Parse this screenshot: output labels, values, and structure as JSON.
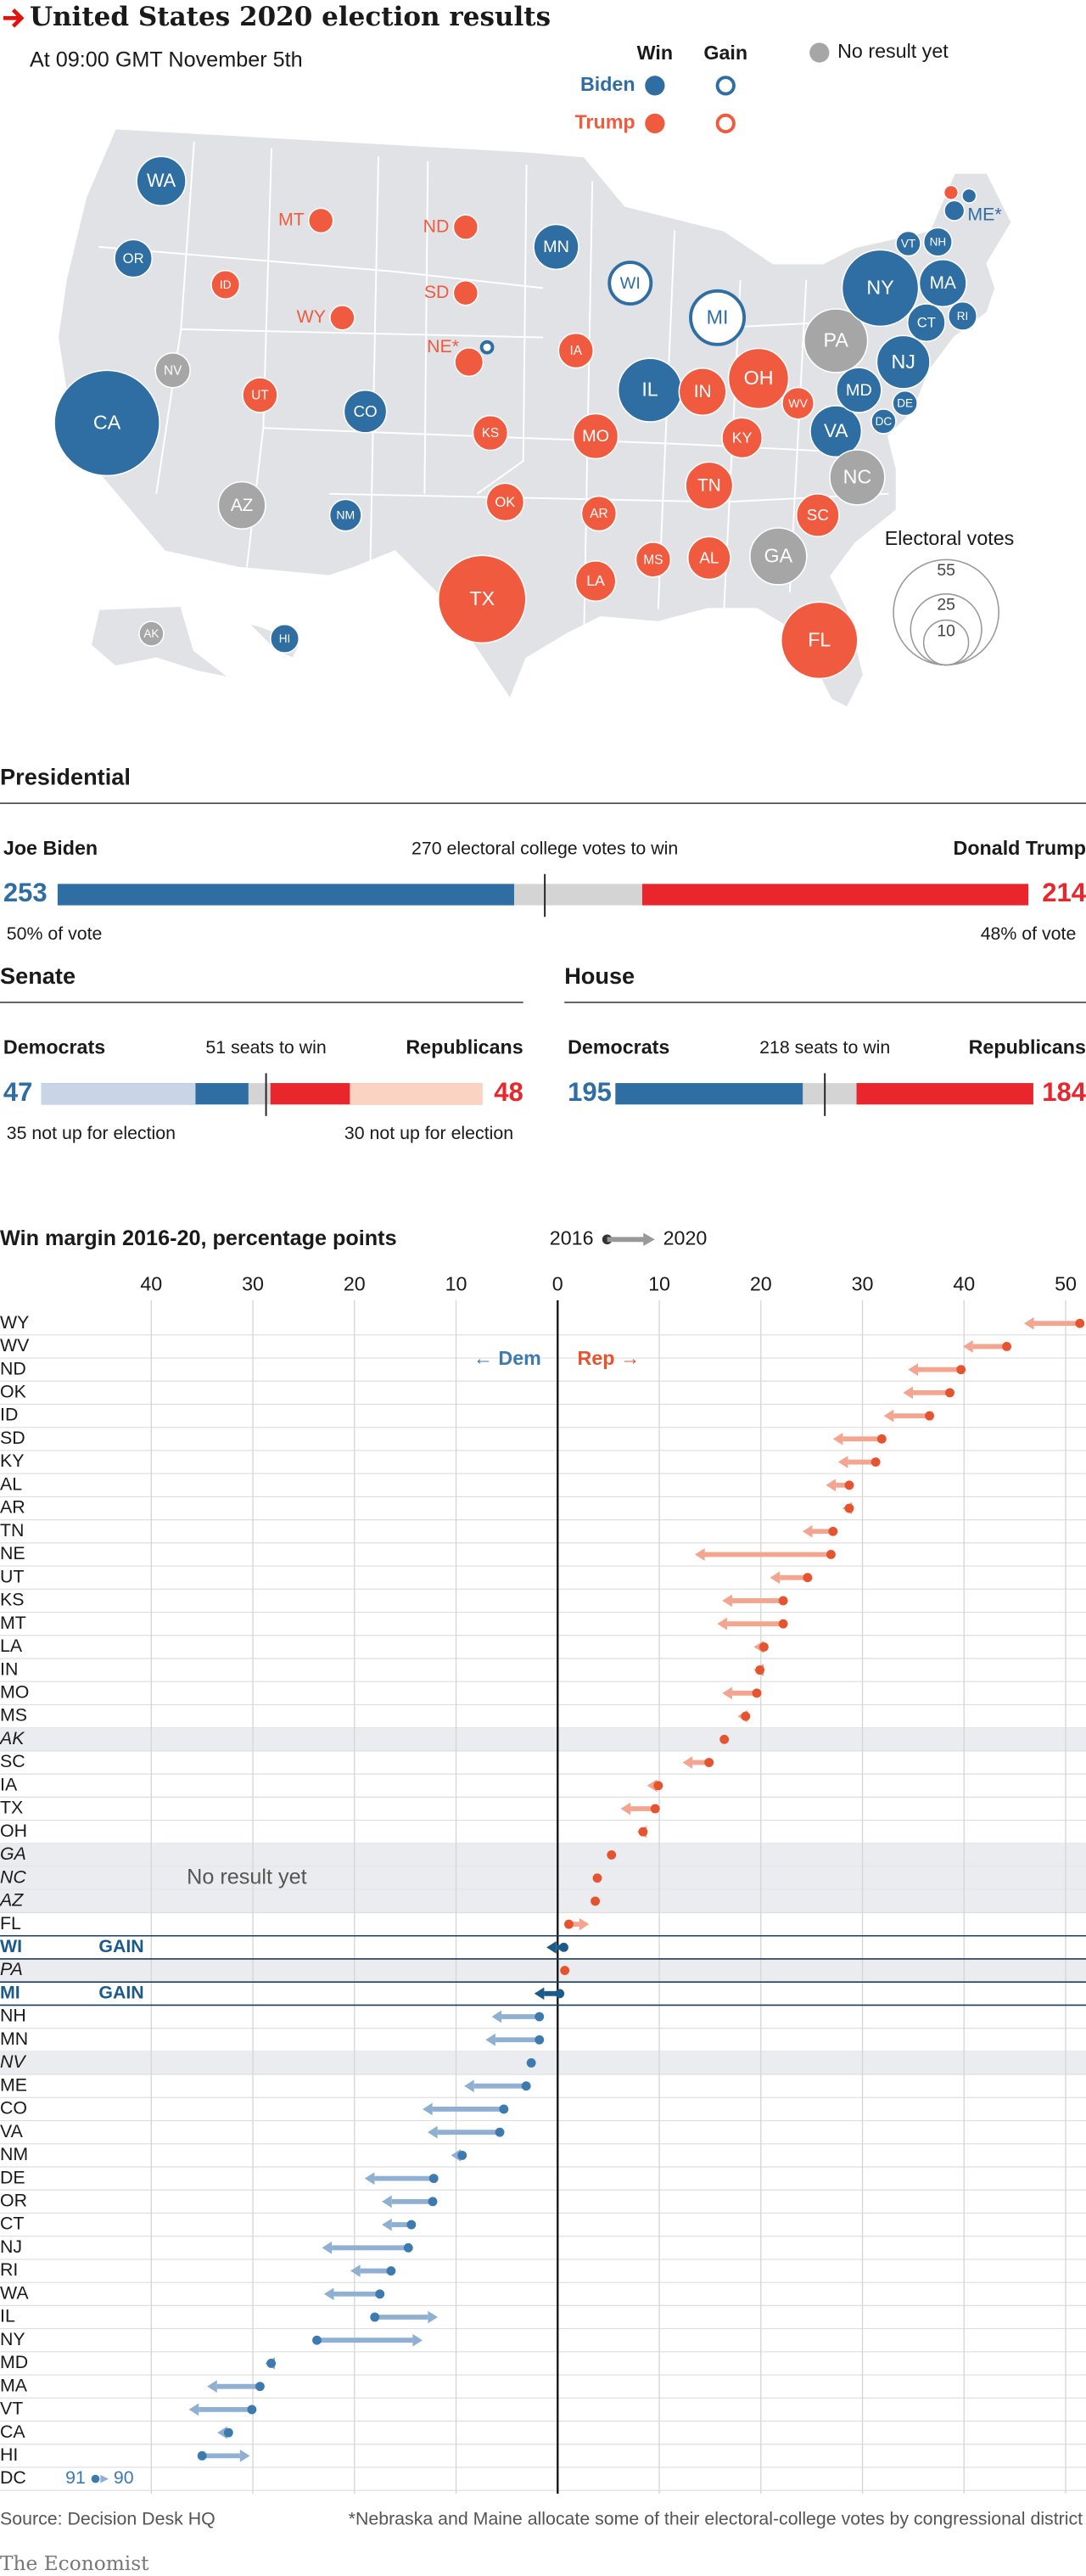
{
  "header": {
    "title": "United States 2020 election results",
    "subtitle": "At 09:00 GMT November 5th",
    "legend": {
      "win": "Win",
      "gain": "Gain",
      "biden": "Biden",
      "trump": "Trump",
      "no_result": "No result yet"
    }
  },
  "chart_data": [
    {
      "type": "map",
      "colors": {
        "biden": "#2f6ea3",
        "trump": "#f05b3f",
        "none": "#a6a6a6"
      },
      "states": [
        {
          "label": "WA",
          "votes": 12,
          "result": "biden"
        },
        {
          "label": "OR",
          "votes": 7,
          "result": "biden"
        },
        {
          "label": "CA",
          "votes": 55,
          "result": "biden"
        },
        {
          "label": "NV",
          "votes": 6,
          "result": "none"
        },
        {
          "label": "ID",
          "votes": 4,
          "result": "trump"
        },
        {
          "label": "MT",
          "votes": 3,
          "result": "trump"
        },
        {
          "label": "ND",
          "votes": 3,
          "result": "trump"
        },
        {
          "label": "SD",
          "votes": 3,
          "result": "trump"
        },
        {
          "label": "WY",
          "votes": 3,
          "result": "trump"
        },
        {
          "label": "NE*",
          "votes": 4,
          "result": "trump"
        },
        {
          "label": null,
          "votes": 1,
          "result": "biden",
          "gain": true
        },
        {
          "label": "UT",
          "votes": 6,
          "result": "trump"
        },
        {
          "label": "CO",
          "votes": 9,
          "result": "biden"
        },
        {
          "label": "AZ",
          "votes": 11,
          "result": "none"
        },
        {
          "label": "NM",
          "votes": 5,
          "result": "biden"
        },
        {
          "label": "TX",
          "votes": 38,
          "result": "trump"
        },
        {
          "label": "OK",
          "votes": 7,
          "result": "trump"
        },
        {
          "label": "KS",
          "votes": 6,
          "result": "trump"
        },
        {
          "label": "MN",
          "votes": 10,
          "result": "biden"
        },
        {
          "label": "WI",
          "votes": 10,
          "result": "biden",
          "gain": true
        },
        {
          "label": "IA",
          "votes": 6,
          "result": "trump"
        },
        {
          "label": "MO",
          "votes": 10,
          "result": "trump"
        },
        {
          "label": "AR",
          "votes": 6,
          "result": "trump"
        },
        {
          "label": "LA",
          "votes": 8,
          "result": "trump"
        },
        {
          "label": "MS",
          "votes": 6,
          "result": "trump"
        },
        {
          "label": "AL",
          "votes": 9,
          "result": "trump"
        },
        {
          "label": "TN",
          "votes": 11,
          "result": "trump"
        },
        {
          "label": "KY",
          "votes": 8,
          "result": "trump"
        },
        {
          "label": "IL",
          "votes": 20,
          "result": "biden"
        },
        {
          "label": "IN",
          "votes": 11,
          "result": "trump"
        },
        {
          "label": "OH",
          "votes": 18,
          "result": "trump"
        },
        {
          "label": "MI",
          "votes": 16,
          "result": "biden",
          "gain": true
        },
        {
          "label": "WV",
          "votes": 5,
          "result": "trump"
        },
        {
          "label": "VA",
          "votes": 13,
          "result": "biden"
        },
        {
          "label": "NC",
          "votes": 15,
          "result": "none"
        },
        {
          "label": "SC",
          "votes": 9,
          "result": "trump"
        },
        {
          "label": "GA",
          "votes": 16,
          "result": "none"
        },
        {
          "label": "FL",
          "votes": 29,
          "result": "trump"
        },
        {
          "label": "PA",
          "votes": 20,
          "result": "none"
        },
        {
          "label": "NY",
          "votes": 29,
          "result": "biden"
        },
        {
          "label": "VT",
          "votes": 3,
          "result": "biden"
        },
        {
          "label": "NH",
          "votes": 4,
          "result": "biden"
        },
        {
          "label": "MA",
          "votes": 11,
          "result": "biden"
        },
        {
          "label": "RI",
          "votes": 4,
          "result": "biden"
        },
        {
          "label": "CT",
          "votes": 7,
          "result": "biden"
        },
        {
          "label": "NJ",
          "votes": 14,
          "result": "biden"
        },
        {
          "label": "DE",
          "votes": 3,
          "result": "biden"
        },
        {
          "label": "MD",
          "votes": 10,
          "result": "biden"
        },
        {
          "label": "DC",
          "votes": 3,
          "result": "biden"
        },
        {
          "label": "ME*",
          "votes": 2,
          "result": "biden"
        },
        {
          "label": null,
          "votes": 1,
          "result": "trump"
        },
        {
          "label": null,
          "votes": 1,
          "result": "biden"
        },
        {
          "label": "AK",
          "votes": 3,
          "result": "none"
        },
        {
          "label": "HI",
          "votes": 4,
          "result": "biden"
        }
      ],
      "size_legend": {
        "title": "Electoral votes",
        "values": [
          55,
          25,
          10
        ]
      }
    },
    {
      "type": "split-bar",
      "title": "Presidential",
      "xlim": [
        0,
        538
      ],
      "threshold": {
        "value": 270,
        "label": "270 electoral college votes to win"
      },
      "left": {
        "name": "Joe Biden",
        "value": 253,
        "color": "#2f6ea3",
        "note": "50% of vote"
      },
      "right": {
        "name": "Donald Trump",
        "value": 214,
        "color": "#e8262c",
        "note": "48% of vote"
      }
    },
    {
      "type": "split-bar",
      "title": "Senate",
      "xlim": [
        0,
        100
      ],
      "threshold": {
        "value": 51,
        "label": "51 seats to win"
      },
      "left": {
        "name": "Democrats",
        "value": 47,
        "color": "#2f6ea3",
        "light": "#c9d4e7",
        "not_up": {
          "value": 35,
          "label": "35 not up for election"
        }
      },
      "right": {
        "name": "Republicans",
        "value": 48,
        "color": "#e8262c",
        "light": "#fbd3c2",
        "not_up": {
          "value": 30,
          "label": "30 not up for election"
        }
      }
    },
    {
      "type": "split-bar",
      "title": "House",
      "xlim": [
        0,
        435
      ],
      "threshold": {
        "value": 218,
        "label": "218 seats to win"
      },
      "left": {
        "name": "Democrats",
        "value": 195,
        "color": "#2f6ea3"
      },
      "right": {
        "name": "Republicans",
        "value": 184,
        "color": "#e8262c"
      }
    },
    {
      "type": "dumbbell",
      "title": "Win margin 2016-20, percentage points",
      "xlim": [
        -51,
        52
      ],
      "xticks": [
        {
          "value": -40,
          "label": "40"
        },
        {
          "value": -30,
          "label": "30"
        },
        {
          "value": -20,
          "label": "20"
        },
        {
          "value": -10,
          "label": "10"
        },
        0,
        10,
        20,
        30,
        40,
        50
      ],
      "colors": {
        "dem": "#3d7ab0",
        "dem_arrow": "#8fb0d2",
        "rep": "#e5532f",
        "rep_arrow": "#f3a590",
        "gain": "#1c5a8a",
        "no_result_band": "#eaecef",
        "legend": "#999999"
      },
      "annotations": {
        "dem": "← Dem",
        "rep": "Rep →",
        "no_result": "No result yet"
      },
      "categories": [
        "WY",
        "WV",
        "ND",
        "OK",
        "ID",
        "SD",
        "KY",
        "AL",
        "AR",
        "TN",
        "NE",
        "UT",
        "KS",
        "MT",
        "LA",
        "IN",
        "MO",
        "MS",
        "AK",
        "SC",
        "IA",
        "TX",
        "OH",
        "GA",
        "NC",
        "AZ",
        "FL",
        "WI",
        "PA",
        "MI",
        "NH",
        "MN",
        "NV",
        "ME",
        "CO",
        "VA",
        "NM",
        "DE",
        "OR",
        "CT",
        "NJ",
        "RI",
        "WA",
        "IL",
        "NY",
        "MD",
        "MA",
        "VT",
        "CA",
        "HI",
        "DC"
      ],
      "row_notes": [
        null,
        null,
        null,
        null,
        null,
        null,
        null,
        null,
        null,
        null,
        null,
        null,
        null,
        null,
        null,
        null,
        null,
        null,
        null,
        null,
        null,
        null,
        null,
        null,
        null,
        null,
        null,
        "GAIN",
        null,
        "GAIN",
        null,
        null,
        null,
        null,
        null,
        null,
        null,
        null,
        null,
        null,
        null,
        null,
        null,
        null,
        null,
        null,
        null,
        null,
        null,
        null,
        null
      ],
      "series": [
        {
          "name": "2016",
          "values": [
            51.4,
            44.2,
            39.7,
            38.6,
            36.6,
            31.9,
            31.3,
            28.7,
            28.7,
            27.1,
            26.9,
            24.6,
            22.2,
            22.2,
            20.3,
            19.9,
            19.6,
            18.5,
            16.4,
            14.9,
            9.9,
            9.6,
            8.4,
            5.3,
            3.9,
            3.7,
            1.1,
            0.6,
            0.7,
            0.2,
            -1.8,
            -1.8,
            -2.6,
            -3.1,
            -5.3,
            -5.7,
            -9.4,
            -12.2,
            -12.3,
            -14.4,
            -14.7,
            -16.4,
            -17.5,
            -18.0,
            -23.7,
            -28.2,
            -29.3,
            -30.1,
            -32.4,
            -35.0,
            -91
          ],
          "value_labels": [
            null,
            null,
            null,
            null,
            null,
            null,
            null,
            null,
            null,
            null,
            null,
            null,
            null,
            null,
            null,
            null,
            null,
            null,
            null,
            null,
            null,
            null,
            null,
            null,
            null,
            null,
            null,
            null,
            null,
            null,
            null,
            null,
            null,
            null,
            null,
            null,
            null,
            null,
            null,
            null,
            null,
            null,
            null,
            null,
            null,
            null,
            null,
            null,
            null,
            null,
            "91"
          ]
        },
        {
          "name": "2020",
          "values": [
            45.9,
            39.9,
            34.5,
            34.0,
            32.1,
            27.1,
            27.6,
            26.4,
            28.0,
            24.1,
            13.5,
            20.9,
            16.2,
            15.7,
            19.3,
            19.3,
            16.2,
            17.7,
            null,
            12.3,
            8.8,
            6.2,
            7.8,
            null,
            null,
            null,
            3.1,
            -1.1,
            null,
            -2.3,
            -6.5,
            -7.1,
            null,
            -9.2,
            -13.3,
            -12.8,
            -10.5,
            -19.0,
            -17.3,
            -17.3,
            -23.2,
            -20.4,
            -23.0,
            -11.8,
            -13.3,
            -28.8,
            -34.5,
            -36.3,
            -33.5,
            -30.3,
            -90
          ],
          "value_labels": [
            null,
            null,
            null,
            null,
            null,
            null,
            null,
            null,
            null,
            null,
            null,
            null,
            null,
            null,
            null,
            null,
            null,
            null,
            null,
            null,
            null,
            null,
            null,
            null,
            null,
            null,
            null,
            null,
            null,
            null,
            null,
            null,
            null,
            null,
            null,
            null,
            null,
            null,
            null,
            null,
            null,
            null,
            null,
            null,
            null,
            null,
            null,
            null,
            null,
            null,
            "90"
          ]
        }
      ]
    }
  ],
  "footer": {
    "source": "Source: Decision Desk HQ",
    "note": "*Nebraska and Maine allocate some of their electoral-college votes by congressional district",
    "brand": "The Economist"
  }
}
